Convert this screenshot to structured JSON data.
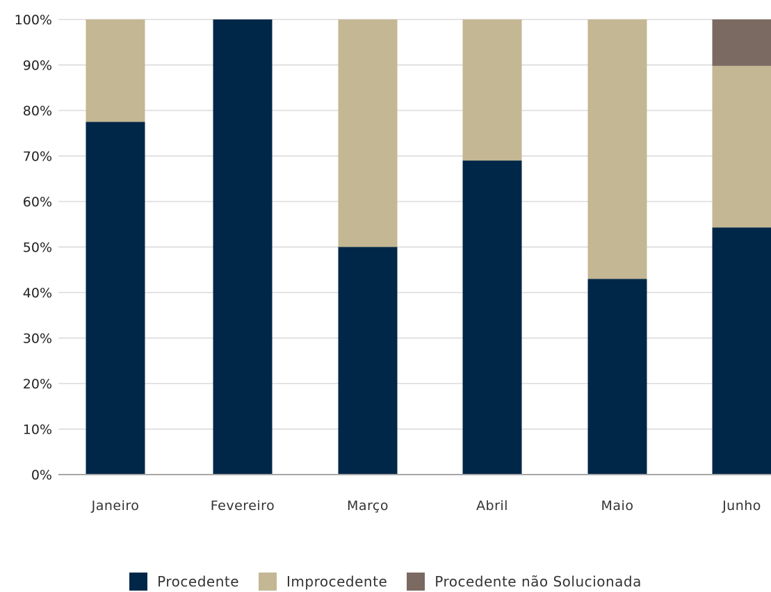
{
  "chart_data": {
    "type": "bar",
    "stacked": true,
    "categories": [
      "Janeiro",
      "Fevereiro",
      "Março",
      "Abril",
      "Maio",
      "Junho"
    ],
    "series": [
      {
        "name": "Procedente",
        "color": "#002748",
        "values": [
          77.5,
          100,
          50,
          69,
          43,
          54.3
        ]
      },
      {
        "name": "Improcedente",
        "color": "#c4b793",
        "values": [
          22.5,
          0,
          50,
          31,
          57,
          35.5
        ]
      },
      {
        "name": "Procedente não Solucionada",
        "color": "#7a6a61",
        "values": [
          0,
          0,
          0,
          0,
          0,
          10.2
        ]
      }
    ],
    "yticks": [
      "0%",
      "10%",
      "20%",
      "30%",
      "40%",
      "50%",
      "60%",
      "70%",
      "80%",
      "90%",
      "100%"
    ],
    "ylim": [
      0,
      100
    ],
    "grid": true,
    "legend_position": "bottom"
  }
}
